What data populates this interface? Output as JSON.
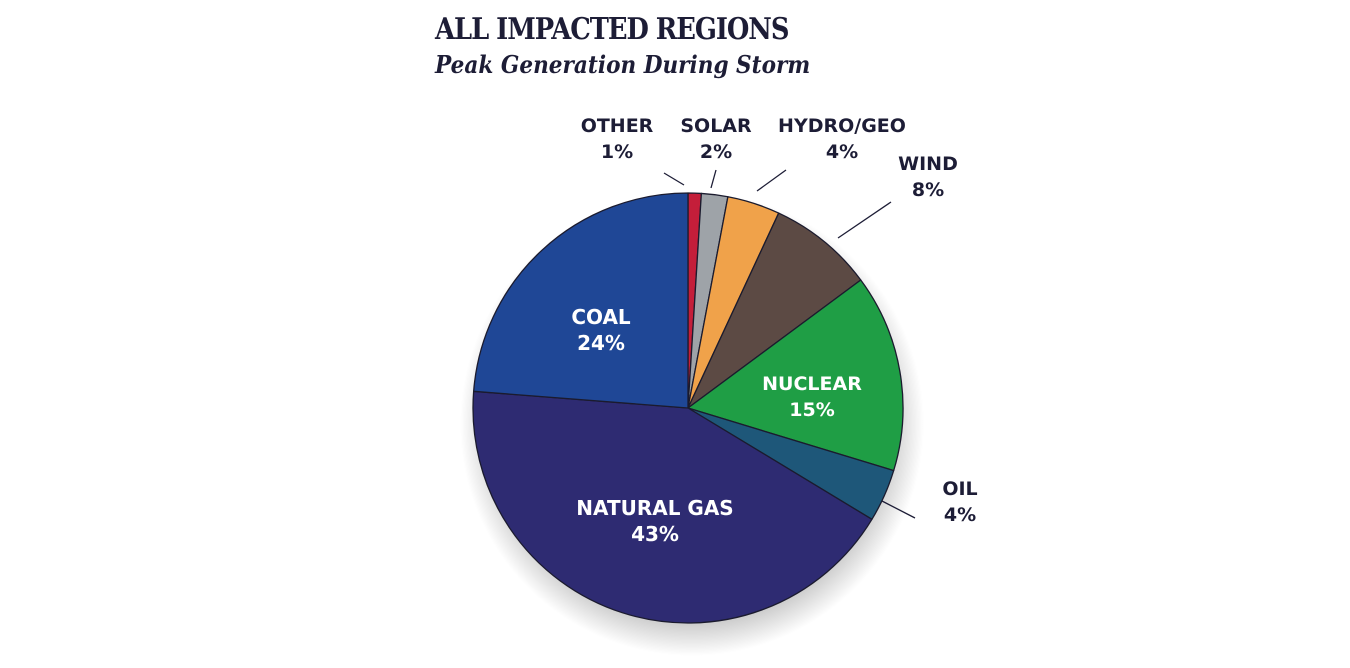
{
  "chart_data": {
    "type": "pie",
    "title": "ALL IMPACTED REGIONS",
    "subtitle": "Peak Generation During Storm",
    "slices": [
      {
        "label": "OTHER",
        "value": 1,
        "value_label": "1%",
        "color": "#c41e3a"
      },
      {
        "label": "SOLAR",
        "value": 2,
        "value_label": "2%",
        "color": "#9ea3a8"
      },
      {
        "label": "HYDRO/GEO",
        "value": 4,
        "value_label": "4%",
        "color": "#f0a24a"
      },
      {
        "label": "WIND",
        "value": 8,
        "value_label": "8%",
        "color": "#5c4a44"
      },
      {
        "label": "NUCLEAR",
        "value": 15,
        "value_label": "15%",
        "color": "#1f9e45"
      },
      {
        "label": "OIL",
        "value": 4,
        "value_label": "4%",
        "color": "#1e5779"
      },
      {
        "label": "NATURAL GAS",
        "value": 43,
        "value_label": "43%",
        "color": "#2e2b72"
      },
      {
        "label": "COAL",
        "value": 24,
        "value_label": "24%",
        "color": "#1f4796"
      }
    ],
    "label_color_inside": "#ffffff",
    "label_color_outside": "#1d1d36",
    "legend": "none"
  }
}
